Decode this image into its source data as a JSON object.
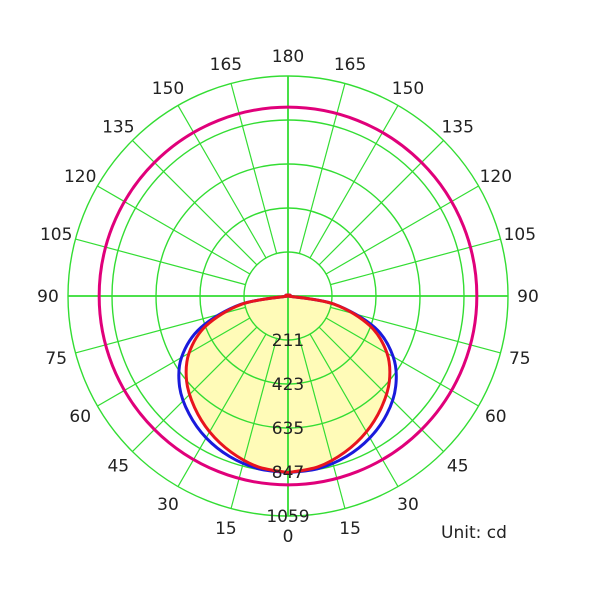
{
  "chart_data": {
    "type": "polar",
    "unit": "Unit: cd",
    "angle_labels": [
      {
        "text": "0",
        "angle": 0,
        "side": 1
      },
      {
        "text": "15",
        "angle": 15,
        "side": 1
      },
      {
        "text": "30",
        "angle": 30,
        "side": 1
      },
      {
        "text": "45",
        "angle": 45,
        "side": 1
      },
      {
        "text": "60",
        "angle": 60,
        "side": 1
      },
      {
        "text": "75",
        "angle": 75,
        "side": 1
      },
      {
        "text": "90",
        "angle": 90,
        "side": 1
      },
      {
        "text": "105",
        "angle": 105,
        "side": 1
      },
      {
        "text": "120",
        "angle": 120,
        "side": 1
      },
      {
        "text": "135",
        "angle": 135,
        "side": 1
      },
      {
        "text": "150",
        "angle": 150,
        "side": 1
      },
      {
        "text": "165",
        "angle": 165,
        "side": 1
      },
      {
        "text": "180",
        "angle": 180,
        "side": 1
      },
      {
        "text": "165",
        "angle": 165,
        "side": -1
      },
      {
        "text": "150",
        "angle": 150,
        "side": -1
      },
      {
        "text": "135",
        "angle": 135,
        "side": -1
      },
      {
        "text": "120",
        "angle": 120,
        "side": -1
      },
      {
        "text": "105",
        "angle": 105,
        "side": -1
      },
      {
        "text": "90",
        "angle": 90,
        "side": -1
      },
      {
        "text": "75",
        "angle": 75,
        "side": -1
      },
      {
        "text": "60",
        "angle": 60,
        "side": -1
      },
      {
        "text": "45",
        "angle": 45,
        "side": -1
      },
      {
        "text": "30",
        "angle": 30,
        "side": -1
      },
      {
        "text": "15",
        "angle": 15,
        "side": -1
      }
    ],
    "radial_ticks": [
      "211",
      "423",
      "635",
      "847",
      "1059"
    ],
    "radial_tick_values": [
      211.8,
      423.6,
      635.4,
      847.2,
      1059
    ],
    "r_max": 1059,
    "angle_step": 15,
    "series": [
      {
        "color": "#e0007a",
        "fill": "none",
        "angles": [
          0,
          180
        ],
        "values": [
          909,
          909
        ],
        "shape": "circle"
      },
      {
        "color": "#1a1adc",
        "fill": "none",
        "angles": [
          0,
          10,
          20,
          30,
          40,
          50,
          60,
          70,
          80,
          90
        ],
        "values_right": [
          850,
          843,
          822,
          788,
          741,
          677,
          585,
          445,
          225,
          0
        ],
        "values_left": [
          850,
          843,
          822,
          788,
          741,
          681,
          592,
          447,
          230,
          0
        ]
      },
      {
        "color": "#e8141e",
        "fill": "#fffbb8",
        "angles": [
          0,
          10,
          20,
          30,
          40,
          50,
          60,
          70,
          80,
          90
        ],
        "values_right": [
          850,
          835,
          800,
          755,
          700,
          637,
          550,
          420,
          225,
          0
        ],
        "values_left": [
          850,
          835,
          800,
          755,
          700,
          637,
          550,
          420,
          225,
          0
        ]
      }
    ],
    "colors": {
      "grid": "#33dd33",
      "axis": "#22cc22"
    }
  }
}
